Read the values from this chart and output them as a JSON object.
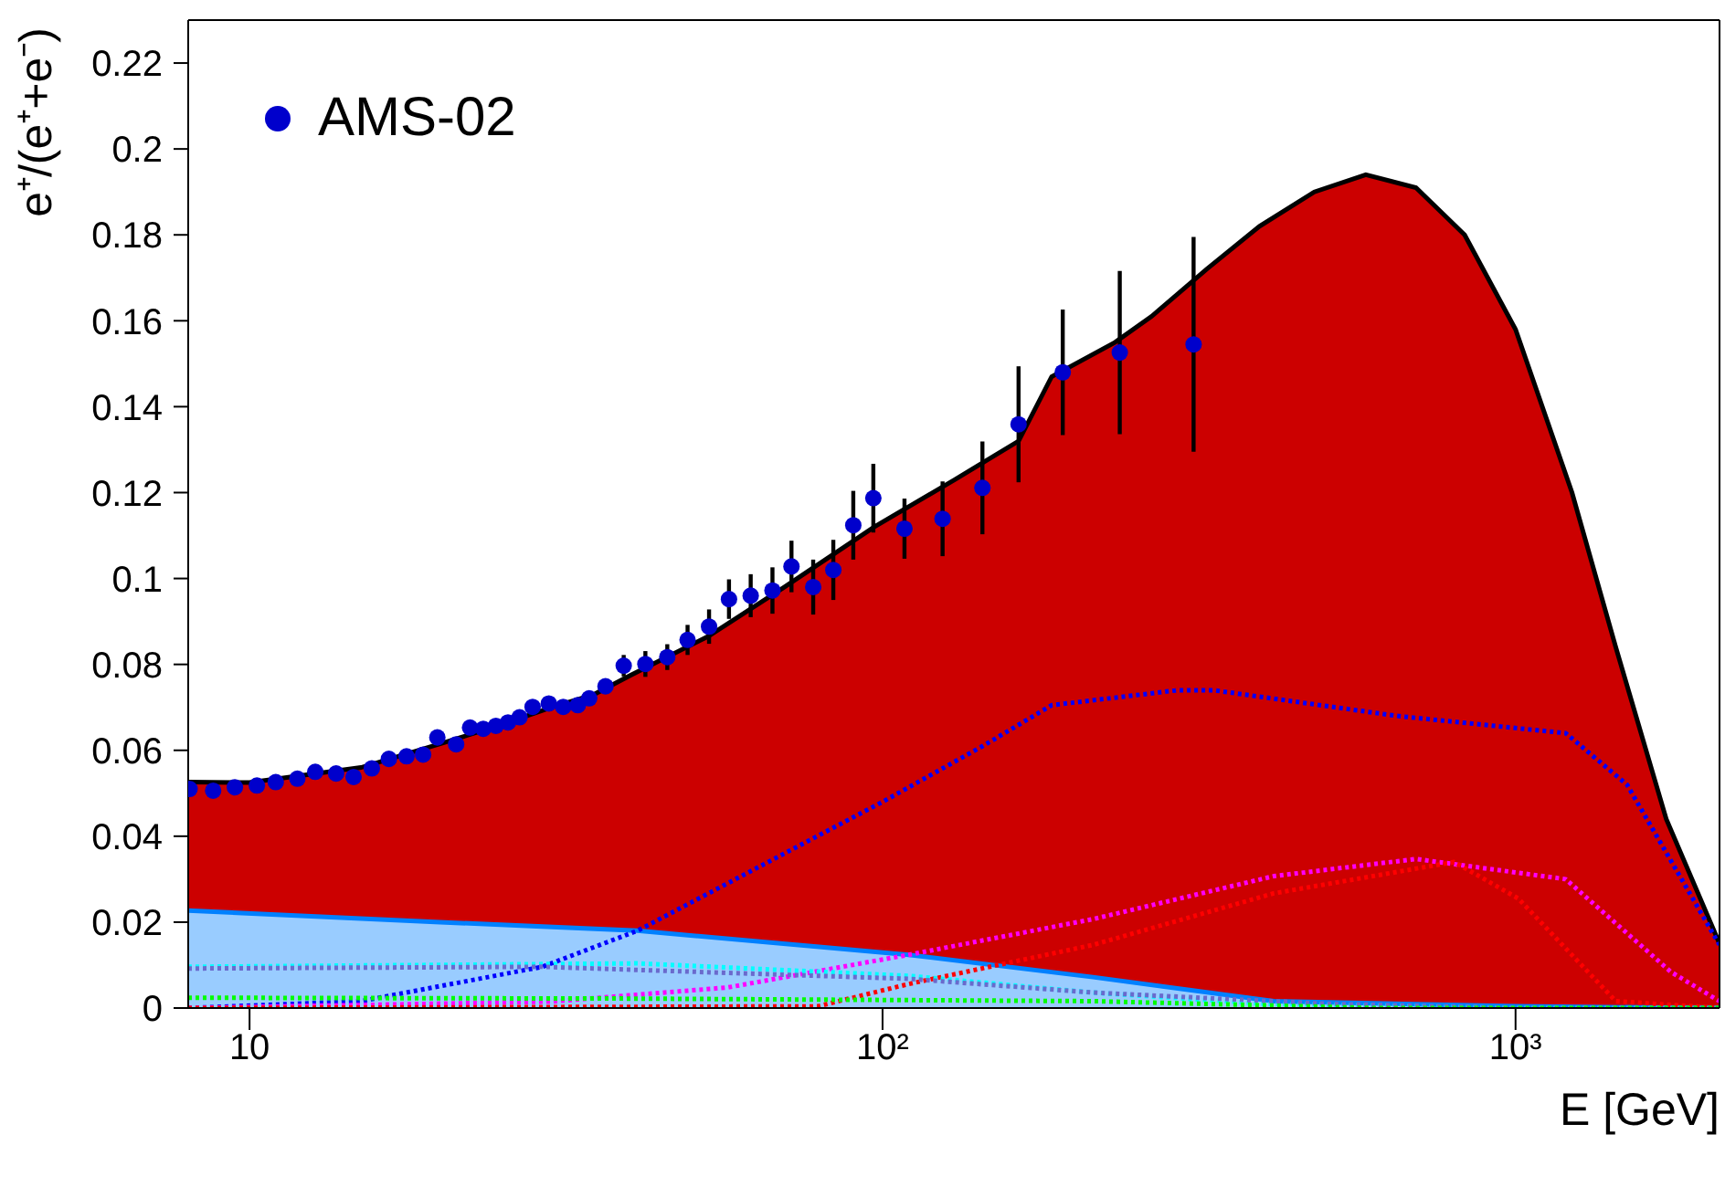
{
  "chart_data": {
    "type": "line",
    "xlabel": "E [GeV]",
    "ylabel": "e⁺/(e⁺+e⁻)",
    "log": "x",
    "xlim": [
      8,
      2100
    ],
    "ylim": [
      0,
      0.23
    ],
    "xticks": [
      10,
      {
        "value": 100,
        "label": "10²"
      },
      {
        "value": 1000,
        "label": "10³"
      }
    ],
    "yticks": [
      0,
      0.02,
      0.04,
      0.06,
      0.08,
      0.1,
      0.12,
      0.14,
      0.16,
      0.18,
      0.2,
      0.22
    ],
    "grid": false,
    "legend": "top left",
    "series": [
      {
        "type": "area",
        "color": "#cc0000",
        "x": [
          8,
          10,
          15,
          20,
          25,
          30,
          35,
          40,
          53,
          70,
          97,
          130,
          164,
          185,
          233,
          266,
          325,
          394,
          481,
          580,
          696,
          831,
          1000,
          1228,
          1440,
          1730,
          2100
        ],
        "values": [
          0.0526,
          0.0525,
          0.056,
          0.0615,
          0.066,
          0.07,
          0.073,
          0.0775,
          0.0865,
          0.098,
          0.112,
          0.123,
          0.132,
          0.147,
          0.155,
          0.161,
          0.172,
          0.182,
          0.19,
          0.194,
          0.191,
          0.18,
          0.158,
          0.12,
          0.084,
          0.044,
          0.015
        ]
      },
      {
        "type": "area",
        "color": "#99ccff",
        "x": [
          8,
          20,
          41,
          110,
          215,
          415,
          1000,
          2100
        ],
        "values": [
          0.0227,
          0.02,
          0.018,
          0.0124,
          0.0072,
          0.0016,
          0.0004,
          0
        ]
      },
      {
        "type": "line",
        "color": "#0000ff",
        "line_style": "dotted",
        "marker": "none",
        "x": [
          8,
          15,
          29,
          41,
          65,
          100,
          144,
          185,
          293,
          333,
          650,
          1200,
          1500,
          2100
        ],
        "values": [
          0,
          0.0016,
          0.0096,
          0.018,
          0.0335,
          0.048,
          0.061,
          0.0705,
          0.074,
          0.074,
          0.068,
          0.064,
          0.052,
          0.0147
        ]
      },
      {
        "type": "line",
        "color": "#ff00ff",
        "line_style": "dotted",
        "marker": "none",
        "x": [
          8,
          30,
          57,
          110,
          215,
          415,
          696,
          1200,
          1760,
          2100
        ],
        "values": [
          0,
          0.0015,
          0.0048,
          0.0124,
          0.0207,
          0.0307,
          0.0347,
          0.03,
          0.0084,
          0.0016
        ]
      },
      {
        "type": "line",
        "color": "#ff0000",
        "line_style": "dotted",
        "marker": "none",
        "x": [
          8,
          79,
          110,
          215,
          415,
          800,
          1010,
          1440,
          2100
        ],
        "values": [
          0,
          0.0004,
          0.0056,
          0.0147,
          0.0267,
          0.034,
          0.0255,
          0.0016,
          0
        ]
      },
      {
        "type": "line",
        "color": "#00ffff",
        "line_style": "dotted",
        "marker": "none",
        "x": [
          8,
          41,
          110,
          215,
          400,
          1000,
          2100
        ],
        "values": [
          0.0096,
          0.0104,
          0.0075,
          0.0036,
          0.001,
          0,
          0
        ]
      },
      {
        "type": "line",
        "color": "#6a6acd",
        "line_style": "dotted",
        "marker": "none",
        "x": [
          8,
          29,
          110,
          215,
          500,
          1000,
          2100
        ],
        "values": [
          0.0092,
          0.0096,
          0.0068,
          0.0036,
          0.001,
          0,
          0
        ]
      },
      {
        "type": "line",
        "color": "#00ff00",
        "line_style": "dotted",
        "marker": "none",
        "x": [
          8,
          41,
          215,
          600,
          2100
        ],
        "values": [
          0.0024,
          0.0022,
          0.0016,
          0,
          0
        ]
      },
      {
        "type": "scatter",
        "name": "AMS-02",
        "color": "#0000cc",
        "marker": "circle",
        "x": [
          8.04,
          8.76,
          9.48,
          10.27,
          11.0,
          11.9,
          12.7,
          13.7,
          14.6,
          15.6,
          16.6,
          17.7,
          18.8,
          19.8,
          21.2,
          22.3,
          23.4,
          24.5,
          25.6,
          26.7,
          28.0,
          29.7,
          31.3,
          33.0,
          34.4,
          36.5,
          39.0,
          42.2,
          45.7,
          49.2,
          53.2,
          57.2,
          61.9,
          67.0,
          71.8,
          77.7,
          83.6,
          89.9,
          96.7,
          108.3,
          124.4,
          143.8,
          164,
          192.6,
          237,
          310
        ],
        "values": [
          0.051,
          0.0506,
          0.0514,
          0.0518,
          0.0526,
          0.0534,
          0.055,
          0.0546,
          0.0538,
          0.0558,
          0.058,
          0.0586,
          0.059,
          0.063,
          0.0614,
          0.0653,
          0.065,
          0.0657,
          0.0665,
          0.0677,
          0.0701,
          0.0709,
          0.0701,
          0.0705,
          0.0721,
          0.0749,
          0.0797,
          0.0801,
          0.0817,
          0.0857,
          0.0888,
          0.0952,
          0.096,
          0.0972,
          0.1028,
          0.098,
          0.102,
          0.1124,
          0.1187,
          0.1116,
          0.1139,
          0.1211,
          0.1359,
          0.148,
          0.1526,
          0.1545
        ],
        "errors": [
          null,
          null,
          null,
          null,
          null,
          null,
          null,
          null,
          null,
          null,
          null,
          null,
          null,
          null,
          null,
          null,
          null,
          null,
          null,
          null,
          null,
          null,
          null,
          null,
          null,
          null,
          0.0025,
          0.003,
          0.003,
          0.0035,
          0.004,
          0.0046,
          0.005,
          0.0054,
          0.006,
          0.0064,
          0.007,
          0.008,
          0.008,
          0.007,
          0.0087,
          0.0108,
          0.0135,
          0.0146,
          0.019,
          0.025
        ]
      }
    ]
  }
}
